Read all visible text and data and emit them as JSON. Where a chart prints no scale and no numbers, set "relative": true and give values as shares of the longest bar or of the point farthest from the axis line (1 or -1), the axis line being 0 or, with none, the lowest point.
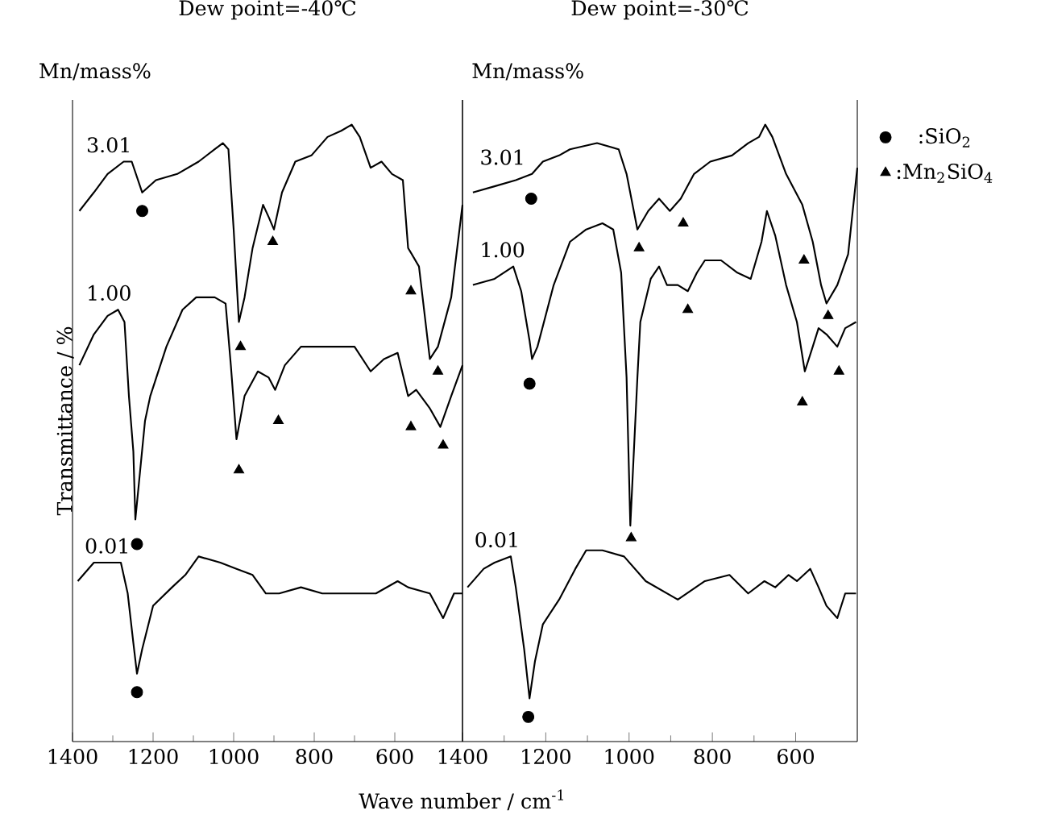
{
  "chart_data": [
    {
      "type": "line",
      "title": "Dew point=-40℃",
      "annotations": [
        "Mn/mass%"
      ],
      "xlabel": "Wave number / cm$^{-1}$",
      "ylabel": "Transmittance / %",
      "relative": true,
      "xlim": [
        1400,
        432
      ],
      "xticks": [
        1400,
        1200,
        1000,
        800,
        600
      ],
      "marker": "none",
      "line_style": "solid",
      "series": [
        {
          "name": "3.01",
          "color": "#000000",
          "x": [
            1383,
            1347,
            1313,
            1273,
            1253,
            1227,
            1193,
            1140,
            1087,
            1047,
            1027,
            1013,
            1000,
            987,
            973,
            953,
            927,
            913,
            900,
            880,
            847,
            807,
            767,
            733,
            707,
            687,
            660,
            633,
            607,
            580,
            567,
            540,
            513,
            493,
            460,
            432
          ],
          "values": [
            0.86,
            0.89,
            0.92,
            0.94,
            0.94,
            0.89,
            0.91,
            0.92,
            0.94,
            0.96,
            0.97,
            0.96,
            0.83,
            0.68,
            0.72,
            0.8,
            0.87,
            0.85,
            0.83,
            0.89,
            0.94,
            0.95,
            0.98,
            0.99,
            1.0,
            0.98,
            0.93,
            0.94,
            0.92,
            0.91,
            0.8,
            0.77,
            0.62,
            0.64,
            0.72,
            0.87
          ]
        },
        {
          "name": "1.00",
          "color": "#000000",
          "x": [
            1383,
            1347,
            1313,
            1287,
            1271,
            1260,
            1249,
            1244,
            1220,
            1207,
            1167,
            1127,
            1093,
            1047,
            1020,
            1007,
            993,
            973,
            940,
            913,
            897,
            873,
            833,
            780,
            740,
            700,
            660,
            627,
            593,
            567,
            547,
            513,
            487,
            460,
            432
          ],
          "values": [
            0.61,
            0.66,
            0.69,
            0.7,
            0.68,
            0.56,
            0.47,
            0.36,
            0.52,
            0.56,
            0.64,
            0.7,
            0.72,
            0.72,
            0.71,
            0.61,
            0.49,
            0.56,
            0.6,
            0.59,
            0.57,
            0.61,
            0.64,
            0.64,
            0.64,
            0.64,
            0.6,
            0.62,
            0.63,
            0.56,
            0.57,
            0.54,
            0.51,
            0.56,
            0.61
          ]
        },
        {
          "name": "0.01",
          "color": "#000000",
          "x": [
            1387,
            1347,
            1313,
            1280,
            1263,
            1249,
            1240,
            1227,
            1200,
            1153,
            1120,
            1087,
            1033,
            993,
            953,
            920,
            887,
            833,
            780,
            713,
            647,
            593,
            567,
            513,
            480,
            453,
            432
          ],
          "values": [
            0.26,
            0.29,
            0.29,
            0.29,
            0.24,
            0.16,
            0.11,
            0.15,
            0.22,
            0.25,
            0.27,
            0.3,
            0.29,
            0.28,
            0.27,
            0.24,
            0.24,
            0.25,
            0.24,
            0.24,
            0.24,
            0.26,
            0.25,
            0.24,
            0.2,
            0.24,
            0.24
          ]
        },
        {
          "type": "scatter",
          "marker": "circle",
          "color": "#000000",
          "x": [
            1227,
            1240,
            1240
          ],
          "values": [
            0.86,
            0.32,
            0.08
          ]
        },
        {
          "type": "scatter",
          "marker": "triangle",
          "color": "#000000",
          "x": [
            903,
            560,
            983,
            493,
            889,
            560,
            480,
            987
          ],
          "values": [
            0.81,
            0.73,
            0.64,
            0.6,
            0.52,
            0.51,
            0.48,
            0.44
          ]
        }
      ]
    },
    {
      "type": "line",
      "title": "Dew point=-30℃",
      "annotations": [
        "Mn/mass%"
      ],
      "relative": true,
      "xlim": [
        1400,
        452
      ],
      "xticks": [
        1400,
        1200,
        1000,
        800,
        600
      ],
      "marker": "none",
      "line_style": "solid",
      "legend": "right",
      "series": [
        {
          "name": "3.01",
          "color": "#000000",
          "x": [
            1375,
            1323,
            1272,
            1233,
            1207,
            1168,
            1142,
            1077,
            1025,
            1006,
            980,
            954,
            928,
            902,
            876,
            844,
            805,
            753,
            714,
            688,
            673,
            656,
            623,
            584,
            559,
            539,
            526,
            500,
            474,
            452
          ],
          "values": [
            0.89,
            0.9,
            0.91,
            0.92,
            0.94,
            0.95,
            0.96,
            0.97,
            0.96,
            0.92,
            0.83,
            0.86,
            0.88,
            0.86,
            0.88,
            0.92,
            0.94,
            0.95,
            0.97,
            0.98,
            1.0,
            0.98,
            0.92,
            0.87,
            0.81,
            0.74,
            0.71,
            0.74,
            0.79,
            0.93
          ]
        },
        {
          "name": "1.00",
          "color": "#000000",
          "x": [
            1375,
            1323,
            1278,
            1259,
            1239,
            1233,
            1220,
            1181,
            1142,
            1103,
            1064,
            1038,
            1019,
            1006,
            997,
            980,
            973,
            948,
            928,
            909,
            883,
            859,
            837,
            818,
            779,
            740,
            708,
            682,
            669,
            649,
            623,
            597,
            578,
            559,
            545,
            526,
            500,
            481,
            455
          ],
          "values": [
            0.74,
            0.75,
            0.77,
            0.73,
            0.65,
            0.62,
            0.64,
            0.74,
            0.81,
            0.83,
            0.84,
            0.83,
            0.76,
            0.59,
            0.35,
            0.59,
            0.68,
            0.75,
            0.77,
            0.74,
            0.74,
            0.73,
            0.76,
            0.78,
            0.78,
            0.76,
            0.75,
            0.81,
            0.86,
            0.82,
            0.74,
            0.68,
            0.6,
            0.64,
            0.67,
            0.66,
            0.64,
            0.67,
            0.68
          ]
        },
        {
          "name": "0.01",
          "color": "#000000",
          "x": [
            1388,
            1349,
            1323,
            1284,
            1272,
            1252,
            1239,
            1226,
            1207,
            1168,
            1129,
            1103,
            1064,
            1012,
            960,
            883,
            818,
            759,
            714,
            675,
            649,
            617,
            597,
            565,
            545,
            526,
            500,
            481,
            455
          ],
          "values": [
            0.25,
            0.28,
            0.29,
            0.3,
            0.25,
            0.15,
            0.07,
            0.13,
            0.19,
            0.23,
            0.28,
            0.31,
            0.31,
            0.3,
            0.26,
            0.23,
            0.26,
            0.27,
            0.24,
            0.26,
            0.25,
            0.27,
            0.26,
            0.28,
            0.25,
            0.22,
            0.2,
            0.24,
            0.24
          ]
        },
        {
          "type": "scatter",
          "name": ":SiO$_{2}$",
          "marker": "circle",
          "color": "#000000",
          "x": [
            1235,
            1239,
            1242
          ],
          "values": [
            0.88,
            0.58,
            0.04
          ]
        },
        {
          "type": "scatter",
          "name": ":Mn$_{2}$SiO$_{4}$",
          "marker": "triangle",
          "color": "#000000",
          "x": [
            976,
            870,
            859,
            580,
            522,
            496,
            584,
            995
          ],
          "values": [
            0.8,
            0.84,
            0.7,
            0.78,
            0.69,
            0.6,
            0.55,
            0.33
          ]
        }
      ]
    }
  ]
}
